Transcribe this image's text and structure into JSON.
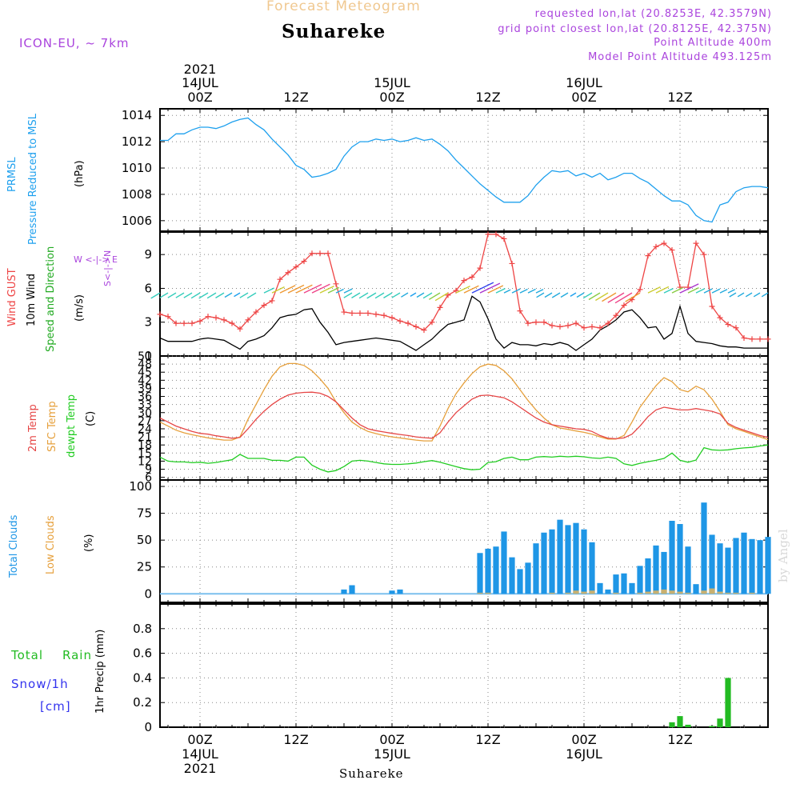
{
  "header": {
    "title": "Forecast Meteogram",
    "location": "Suhareke",
    "model": "ICON-EU, ~ 7km",
    "requested": "requested lon,lat (20.8253E, 42.3579N)",
    "gridpoint": "grid point closest lon,lat (20.8125E, 42.375N)",
    "point_alt": "Point Altitude 400m",
    "model_alt": "Model Point Altitude 493.125m",
    "footer_location": "Suhareke",
    "signature": "by Angel"
  },
  "colors": {
    "pressure": "#1ea0ee",
    "gust": "#ee4444",
    "wind": "#000000",
    "temp": "#e64646",
    "sfc": "#e6a03c",
    "dewpt": "#22cc22",
    "total_cloud": "#1e96e6",
    "low_cloud": "#c8b070",
    "rain": "#22bb22",
    "snow": "#3333ee",
    "purple": "#aa44dd",
    "title_orange": "#f0c890"
  },
  "panel_labels": {
    "pressure": [
      "PRMSL",
      "Pressure Reduced to MSL",
      "(hPa)"
    ],
    "wind": [
      "Wind GUST",
      "10m Wind",
      "Speed and Direction",
      "(m/s)"
    ],
    "compass": "W <-|-> E",
    "compass_ns": "S<-|->N",
    "temp": [
      "2m Temp",
      "SFC Temp",
      "dewpt Temp",
      "(C)"
    ],
    "clouds": [
      "Total Clouds",
      "Low Clouds",
      "(%)"
    ],
    "precip": [
      "Total",
      "Rain",
      "Snow/1h",
      "[cm]",
      "1hr Precip (mm)"
    ]
  },
  "time_axis": {
    "top_year": "2021",
    "top_labels": [
      {
        "t": 0,
        "day": "14JUL",
        "hr": "00Z"
      },
      {
        "t": 12,
        "day": "",
        "hr": "12Z"
      },
      {
        "t": 24,
        "day": "15JUL",
        "hr": "00Z"
      },
      {
        "t": 36,
        "day": "",
        "hr": "12Z"
      },
      {
        "t": 48,
        "day": "16JUL",
        "hr": "00Z"
      },
      {
        "t": 60,
        "day": "",
        "hr": "12Z"
      }
    ],
    "bottom_labels": [
      {
        "t": 0,
        "hr": "00Z",
        "day": "14JUL",
        "year": "2021"
      },
      {
        "t": 12,
        "hr": "12Z",
        "day": "",
        "year": ""
      },
      {
        "t": 24,
        "hr": "00Z",
        "day": "15JUL",
        "year": ""
      },
      {
        "t": 36,
        "hr": "12Z",
        "day": "",
        "year": ""
      },
      {
        "t": 48,
        "hr": "00Z",
        "day": "16JUL",
        "year": ""
      },
      {
        "t": 60,
        "hr": "12Z",
        "day": "",
        "year": ""
      }
    ],
    "range_hours": [
      -5,
      71
    ]
  },
  "chart_data": [
    {
      "type": "line",
      "title": "PRMSL Pressure Reduced to MSL",
      "ylabel": "(hPa)",
      "ylim": [
        1005.2,
        1014.5
      ],
      "yticks": [
        1006,
        1008,
        1010,
        1012,
        1014
      ],
      "x": [
        -5,
        -4,
        -3,
        -2,
        -1,
        0,
        1,
        2,
        3,
        4,
        5,
        6,
        7,
        8,
        9,
        10,
        11,
        12,
        13,
        14,
        15,
        16,
        17,
        18,
        19,
        20,
        21,
        22,
        23,
        24,
        25,
        26,
        27,
        28,
        29,
        30,
        31,
        32,
        33,
        34,
        35,
        36,
        37,
        38,
        39,
        40,
        41,
        42,
        43,
        44,
        45,
        46,
        47,
        48,
        49,
        50,
        51,
        52,
        53,
        54,
        55,
        56,
        57,
        58,
        59,
        60,
        61,
        62,
        63,
        64,
        65,
        66,
        67,
        68,
        69,
        70,
        71
      ],
      "series": [
        {
          "name": "PRMSL",
          "values": [
            1012.1,
            1012.1,
            1012.6,
            1012.6,
            1012.9,
            1013.1,
            1013.1,
            1013.0,
            1013.2,
            1013.5,
            1013.7,
            1013.8,
            1013.3,
            1012.9,
            1012.2,
            1011.6,
            1011.0,
            1010.2,
            1009.9,
            1009.3,
            1009.4,
            1009.6,
            1009.9,
            1010.9,
            1011.6,
            1012.0,
            1012.0,
            1012.2,
            1012.1,
            1012.2,
            1012.0,
            1012.1,
            1012.3,
            1012.1,
            1012.2,
            1011.8,
            1011.3,
            1010.6,
            1010.0,
            1009.4,
            1008.8,
            1008.3,
            1007.8,
            1007.4,
            1007.4,
            1007.4,
            1007.9,
            1008.7,
            1009.3,
            1009.8,
            1009.7,
            1009.8,
            1009.4,
            1009.6,
            1009.3,
            1009.6,
            1009.1,
            1009.3,
            1009.6,
            1009.6,
            1009.2,
            1008.9,
            1008.4,
            1007.9,
            1007.5,
            1007.5,
            1007.2,
            1006.4,
            1006.0,
            1005.9,
            1007.2,
            1007.4,
            1008.2,
            1008.5,
            1008.6,
            1008.6,
            1008.5
          ]
        }
      ]
    },
    {
      "type": "line",
      "title": "Wind GUST / 10m Wind Speed and Direction",
      "ylabel": "(m/s)",
      "ylim": [
        0,
        11
      ],
      "yticks": [
        0,
        3,
        6,
        9
      ],
      "x": [
        -5,
        -4,
        -3,
        -2,
        -1,
        0,
        1,
        2,
        3,
        4,
        5,
        6,
        7,
        8,
        9,
        10,
        11,
        12,
        13,
        14,
        15,
        16,
        17,
        18,
        19,
        20,
        21,
        22,
        23,
        24,
        25,
        26,
        27,
        28,
        29,
        30,
        31,
        32,
        33,
        34,
        35,
        36,
        37,
        38,
        39,
        40,
        41,
        42,
        43,
        44,
        45,
        46,
        47,
        48,
        49,
        50,
        51,
        52,
        53,
        54,
        55,
        56,
        57,
        58,
        59,
        60,
        61,
        62,
        63,
        64,
        65,
        66,
        67,
        68,
        69,
        70,
        71
      ],
      "series": [
        {
          "name": "Wind GUST",
          "values": [
            3.7,
            3.5,
            2.9,
            2.9,
            2.9,
            3.1,
            3.5,
            3.4,
            3.2,
            2.9,
            2.4,
            3.2,
            3.9,
            4.5,
            4.9,
            6.8,
            7.4,
            7.9,
            8.4,
            9.1,
            9.1,
            9.1,
            6.4,
            3.9,
            3.8,
            3.8,
            3.8,
            3.7,
            3.6,
            3.4,
            3.1,
            2.9,
            2.6,
            2.3,
            3.0,
            4.3,
            5.4,
            5.8,
            6.7,
            7.0,
            7.8,
            10.8,
            10.8,
            10.4,
            8.2,
            4.0,
            2.9,
            3.0,
            3.0,
            2.7,
            2.6,
            2.7,
            2.9,
            2.5,
            2.6,
            2.5,
            2.9,
            3.6,
            4.5,
            5.0,
            5.9,
            8.9,
            9.7,
            10.0,
            9.4,
            6.1,
            6.1,
            10.0,
            9.0,
            4.4,
            3.4,
            2.8,
            2.5,
            1.6,
            1.5,
            1.5,
            1.5
          ]
        },
        {
          "name": "10m Wind",
          "values": [
            1.6,
            1.3,
            1.3,
            1.3,
            1.3,
            1.5,
            1.6,
            1.5,
            1.4,
            1.0,
            0.6,
            1.3,
            1.5,
            1.8,
            2.5,
            3.4,
            3.6,
            3.7,
            4.1,
            4.2,
            3.0,
            2.1,
            1.0,
            1.2,
            1.3,
            1.4,
            1.5,
            1.6,
            1.5,
            1.4,
            1.3,
            0.9,
            0.5,
            1.0,
            1.5,
            2.2,
            2.8,
            3.0,
            3.2,
            5.3,
            4.8,
            3.3,
            1.5,
            0.7,
            1.2,
            1.0,
            1.0,
            0.9,
            1.1,
            1.0,
            1.2,
            1.0,
            0.5,
            1.0,
            1.5,
            2.3,
            2.7,
            3.2,
            3.9,
            4.1,
            3.4,
            2.5,
            2.6,
            1.5,
            2.0,
            4.4,
            2.0,
            1.3,
            1.2,
            1.1,
            0.9,
            0.8,
            0.8,
            0.7,
            0.7,
            0.7,
            0.7
          ]
        }
      ]
    },
    {
      "type": "line",
      "title": "2m Temp / SFC Temp / dewpt Temp",
      "ylabel": "(C)",
      "ylim": [
        5,
        51
      ],
      "yticks": [
        6,
        9,
        12,
        15,
        18,
        21,
        24,
        27,
        30,
        33,
        36,
        39,
        42,
        45,
        48,
        51
      ],
      "x": [
        -5,
        -4,
        -3,
        -2,
        -1,
        0,
        1,
        2,
        3,
        4,
        5,
        6,
        7,
        8,
        9,
        10,
        11,
        12,
        13,
        14,
        15,
        16,
        17,
        18,
        19,
        20,
        21,
        22,
        23,
        24,
        25,
        26,
        27,
        28,
        29,
        30,
        31,
        32,
        33,
        34,
        35,
        36,
        37,
        38,
        39,
        40,
        41,
        42,
        43,
        44,
        45,
        46,
        47,
        48,
        49,
        50,
        51,
        52,
        53,
        54,
        55,
        56,
        57,
        58,
        59,
        60,
        61,
        62,
        63,
        64,
        65,
        66,
        67,
        68,
        69,
        70,
        71
      ],
      "series": [
        {
          "name": "2m Temp",
          "values": [
            28.0,
            26.5,
            25.0,
            24.0,
            23.0,
            22.3,
            22.0,
            21.4,
            21.0,
            20.5,
            20.8,
            24.0,
            27.5,
            30.5,
            33.0,
            35.0,
            36.5,
            37.2,
            37.5,
            37.6,
            37.2,
            36.0,
            34.0,
            31.0,
            28.0,
            25.5,
            24.0,
            23.3,
            22.8,
            22.3,
            21.9,
            21.5,
            21.0,
            20.7,
            20.5,
            22.5,
            26.5,
            30.0,
            32.5,
            35.0,
            36.3,
            36.5,
            36.0,
            35.5,
            34.0,
            32.0,
            30.0,
            28.0,
            26.5,
            25.5,
            25.0,
            24.5,
            24.0,
            23.8,
            23.0,
            21.5,
            20.5,
            20.3,
            20.6,
            22.0,
            25.0,
            28.5,
            31.0,
            32.0,
            31.5,
            31.0,
            31.0,
            31.5,
            31.0,
            30.5,
            29.5,
            26.0,
            24.5,
            23.5,
            22.5,
            21.5,
            20.8
          ]
        },
        {
          "name": "SFC Temp",
          "values": [
            26.5,
            25.0,
            23.5,
            22.5,
            21.8,
            21.2,
            20.6,
            20.2,
            19.8,
            19.8,
            21.0,
            27.5,
            33.0,
            38.5,
            43.5,
            47.0,
            48.2,
            48.2,
            47.5,
            45.5,
            42.5,
            39.0,
            34.0,
            30.0,
            26.5,
            24.5,
            23.0,
            22.2,
            21.5,
            21.0,
            20.6,
            20.2,
            19.8,
            19.5,
            19.5,
            25.0,
            31.5,
            37.0,
            41.0,
            44.5,
            47.0,
            48.0,
            47.5,
            45.5,
            42.5,
            38.5,
            34.5,
            31.0,
            28.0,
            25.5,
            24.3,
            23.8,
            23.2,
            22.7,
            22.0,
            21.0,
            20.2,
            20.2,
            21.5,
            26.5,
            32.0,
            36.0,
            40.0,
            43.0,
            41.5,
            38.5,
            37.7,
            39.8,
            38.5,
            35.0,
            30.5,
            25.5,
            24.0,
            23.0,
            22.0,
            21.0,
            20.0
          ]
        },
        {
          "name": "dewpt Temp",
          "values": [
            13.5,
            12.0,
            11.7,
            11.7,
            11.4,
            11.6,
            11.2,
            11.5,
            12.0,
            12.5,
            14.5,
            13.0,
            13.0,
            13.0,
            12.3,
            12.3,
            12.0,
            13.5,
            13.5,
            10.5,
            9.0,
            8.0,
            8.5,
            10.0,
            12.0,
            12.3,
            12.0,
            11.5,
            11.0,
            10.8,
            10.8,
            11.0,
            11.3,
            11.8,
            12.2,
            11.6,
            10.8,
            10.0,
            9.2,
            8.8,
            9.0,
            11.5,
            11.8,
            13.0,
            13.5,
            12.5,
            12.5,
            13.5,
            13.7,
            13.5,
            13.8,
            13.6,
            13.8,
            13.6,
            13.2,
            13.0,
            13.5,
            13.0,
            11.0,
            10.4,
            11.2,
            11.8,
            12.3,
            13.0,
            15.0,
            12.3,
            11.6,
            12.4,
            17.0,
            16.2,
            16.0,
            16.2,
            16.6,
            16.9,
            17.1,
            17.6,
            18.0
          ]
        }
      ]
    },
    {
      "type": "bar",
      "title": "Total Clouds / Low Clouds",
      "ylabel": "(%)",
      "ylim": [
        -8,
        106
      ],
      "yticks": [
        0,
        25,
        50,
        75,
        100
      ],
      "x": [
        -5,
        -4,
        -3,
        -2,
        -1,
        0,
        1,
        2,
        3,
        4,
        5,
        6,
        7,
        8,
        9,
        10,
        11,
        12,
        13,
        14,
        15,
        16,
        17,
        18,
        19,
        20,
        21,
        22,
        23,
        24,
        25,
        26,
        27,
        28,
        29,
        30,
        31,
        32,
        33,
        34,
        35,
        36,
        37,
        38,
        39,
        40,
        41,
        42,
        43,
        44,
        45,
        46,
        47,
        48,
        49,
        50,
        51,
        52,
        53,
        54,
        55,
        56,
        57,
        58,
        59,
        60,
        61,
        62,
        63,
        64,
        65,
        66,
        67,
        68,
        69,
        70,
        71
      ],
      "series": [
        {
          "name": "Total Clouds",
          "values": [
            0,
            0,
            0,
            0,
            0,
            0,
            0,
            0,
            0,
            0,
            0,
            0,
            0,
            0,
            0,
            0,
            0,
            0,
            0,
            0,
            0,
            0,
            0,
            4,
            8,
            0,
            0,
            0,
            0,
            3,
            4,
            0,
            0,
            0,
            0,
            0,
            0,
            0,
            0,
            0,
            38,
            42,
            44,
            58,
            34,
            23,
            29,
            47,
            57,
            60,
            69,
            64,
            66,
            60,
            48,
            10,
            4,
            18,
            19,
            10,
            26,
            33,
            45,
            39,
            68,
            65,
            44,
            9,
            85,
            55,
            47,
            43,
            52,
            57,
            51,
            50,
            53
          ]
        },
        {
          "name": "Low Clouds",
          "values": [
            0,
            0,
            0,
            0,
            0,
            0,
            0,
            0,
            0,
            0,
            0,
            0,
            0,
            0,
            0,
            0,
            0,
            0,
            0,
            0,
            0,
            0,
            0,
            0,
            0,
            0,
            0,
            0,
            0,
            0,
            0,
            0,
            0,
            0,
            0,
            0,
            0,
            0,
            0,
            0,
            1,
            1,
            0,
            0,
            0,
            0,
            0,
            0,
            0,
            1,
            0,
            1,
            3,
            2,
            3,
            0,
            0,
            1,
            0,
            0,
            1,
            2,
            3,
            4,
            3,
            2,
            1,
            0,
            3,
            5,
            2,
            1,
            1,
            0,
            1,
            0,
            0
          ]
        }
      ]
    },
    {
      "type": "bar",
      "title": "1hr Precip",
      "ylabel": "1hr Precip (mm)",
      "ylim": [
        0,
        1.0
      ],
      "yticks": [
        0,
        0.2,
        0.4,
        0.6,
        0.8
      ],
      "x": [
        59,
        60,
        61,
        64,
        65,
        66
      ],
      "series": [
        {
          "name": "Total Rain",
          "values": [
            0.04,
            0.09,
            0.02,
            0.01,
            0.07,
            0.4
          ]
        }
      ]
    }
  ]
}
